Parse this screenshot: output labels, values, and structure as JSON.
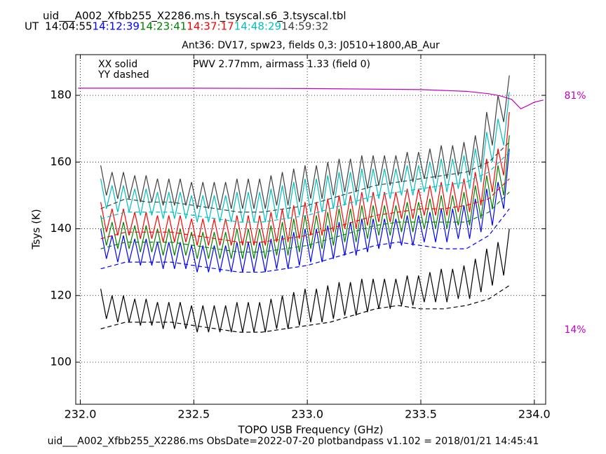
{
  "chart_data": {
    "type": "line",
    "filename": "uid___A002_Xfbb255_X2286.ms.h_tsyscal.s6_3.tsyscal.tbl",
    "ut_label": "UT",
    "title": "Ant36: DV17,  spw23,  fields 0,3: J0510+1800,AB_Aur",
    "legend_lines": [
      "XX solid",
      "YY dashed"
    ],
    "annotation": "PWV 2.77mm, airmass 1.33 (field 0)",
    "xlabel": "TOPO USB Frequency (GHz)",
    "ylabel": "Tsys (K)",
    "footer": "uid___A002_Xfbb255_X2286.ms  ObsDate=2022-07-20   plotbandpass v1.102 = 2018/01/21 14:45:41",
    "xlim": [
      231.98,
      234.05
    ],
    "ylim": [
      87.4,
      192.2
    ],
    "y2lim": [
      -7.3,
      92.8
    ],
    "xticks": [
      {
        "value": 232.0,
        "label": "232.0"
      },
      {
        "value": 232.5,
        "label": "232.5"
      },
      {
        "value": 233.0,
        "label": "233.0"
      },
      {
        "value": 233.5,
        "label": "233.5"
      },
      {
        "value": 234.0,
        "label": "234.0"
      }
    ],
    "yticks": [
      100,
      120,
      140,
      160,
      180
    ],
    "y2ticks": [
      {
        "value": 14,
        "label": "14%"
      },
      {
        "value": 81,
        "label": "81%"
      }
    ],
    "grid": true,
    "x": [
      232.09,
      232.115,
      232.14,
      232.165,
      232.19,
      232.215,
      232.24,
      232.265,
      232.29,
      232.315,
      232.34,
      232.365,
      232.39,
      232.415,
      232.44,
      232.465,
      232.49,
      232.515,
      232.54,
      232.565,
      232.59,
      232.615,
      232.64,
      232.665,
      232.69,
      232.715,
      232.74,
      232.765,
      232.79,
      232.815,
      232.84,
      232.865,
      232.89,
      232.915,
      232.94,
      232.965,
      232.99,
      233.015,
      233.04,
      233.065,
      233.09,
      233.115,
      233.14,
      233.165,
      233.19,
      233.215,
      233.24,
      233.265,
      233.29,
      233.315,
      233.34,
      233.365,
      233.39,
      233.415,
      233.44,
      233.465,
      233.49,
      233.515,
      233.54,
      233.565,
      233.59,
      233.615,
      233.64,
      233.665,
      233.69,
      233.715,
      233.74,
      233.765,
      233.79,
      233.815,
      233.84,
      233.865,
      233.89
    ],
    "yy_x": [
      232.09,
      232.2,
      232.3,
      232.4,
      232.5,
      232.6,
      232.7,
      232.8,
      232.9,
      233.0,
      233.1,
      233.2,
      233.3,
      233.4,
      233.5,
      233.6,
      233.7,
      233.8,
      233.89
    ],
    "series": [
      {
        "name": "14:04:55",
        "color": "#000000",
        "values": [
          122,
          113,
          120,
          112,
          120,
          112,
          119,
          111,
          119,
          111,
          118,
          110,
          118,
          110,
          118,
          110,
          117,
          109,
          117,
          109,
          117,
          109,
          117,
          109,
          118,
          109,
          118,
          109,
          118,
          109,
          119,
          110,
          120,
          110,
          121,
          111,
          122,
          112,
          122,
          112,
          123,
          113,
          124,
          114,
          124,
          114,
          125,
          115,
          125,
          116,
          125,
          116,
          125,
          117,
          126,
          117,
          126,
          118,
          127,
          118,
          128,
          118,
          128,
          119,
          129,
          119,
          131,
          121,
          134,
          123,
          136,
          126,
          140
        ],
        "yy": [
          110,
          112,
          112,
          112,
          111,
          110,
          109,
          109,
          110,
          111,
          112,
          114,
          116,
          117,
          116,
          116,
          117,
          119,
          123
        ]
      },
      {
        "name": "14:12:39",
        "color": "#0000ff",
        "values": [
          140,
          131,
          138,
          130,
          138,
          130,
          137,
          129,
          137,
          129,
          136,
          128,
          136,
          128,
          136,
          128,
          135,
          127,
          135,
          127,
          135,
          127,
          135,
          127,
          136,
          127,
          136,
          127,
          136,
          127,
          137,
          128,
          138,
          128,
          139,
          129,
          140,
          130,
          140,
          130,
          141,
          131,
          142,
          132,
          142,
          132,
          143,
          133,
          143,
          134,
          143,
          134,
          143,
          135,
          144,
          135,
          144,
          136,
          145,
          136,
          146,
          136,
          146,
          137,
          147,
          137,
          149,
          139,
          152,
          141,
          154,
          146,
          164
        ],
        "yy": [
          128,
          130,
          130,
          130,
          129,
          128,
          127,
          127,
          128,
          129,
          131,
          133,
          135,
          136,
          135,
          134,
          134,
          138,
          146
        ]
      },
      {
        "name": "14:23:41",
        "color": "#008000",
        "values": [
          144,
          135,
          142,
          134,
          142,
          134,
          141,
          133,
          141,
          133,
          140,
          132,
          140,
          132,
          140,
          132,
          139,
          131,
          139,
          131,
          139,
          131,
          139,
          131,
          140,
          131,
          140,
          131,
          140,
          131,
          141,
          132,
          142,
          132,
          143,
          133,
          144,
          134,
          144,
          134,
          145,
          135,
          146,
          136,
          146,
          136,
          147,
          137,
          147,
          138,
          147,
          138,
          147,
          139,
          148,
          139,
          148,
          140,
          149,
          140,
          150,
          140,
          150,
          141,
          151,
          141,
          153,
          143,
          156,
          146,
          159,
          150,
          168
        ],
        "yy": [
          134,
          136,
          136,
          136,
          135,
          134,
          133,
          133,
          134,
          135,
          137,
          139,
          141,
          142,
          142,
          142,
          142,
          145,
          151
        ]
      },
      {
        "name": "14:37:17",
        "color": "#ff0000",
        "values": [
          148,
          139,
          146,
          138,
          146,
          138,
          145,
          137,
          145,
          137,
          144,
          136,
          144,
          136,
          144,
          136,
          143,
          135,
          143,
          135,
          143,
          135,
          143,
          135,
          144,
          135,
          144,
          135,
          144,
          135,
          145,
          136,
          146,
          136,
          147,
          137,
          148,
          138,
          148,
          138,
          149,
          139,
          150,
          140,
          150,
          140,
          151,
          141,
          151,
          142,
          151,
          142,
          151,
          143,
          152,
          143,
          152,
          144,
          153,
          144,
          154,
          144,
          154,
          145,
          155,
          145,
          157,
          147,
          161,
          151,
          164,
          156,
          175
        ],
        "yy": [
          137,
          139,
          139,
          139,
          138,
          137,
          136,
          136,
          137,
          138,
          140,
          142,
          144,
          145,
          146,
          146,
          147,
          149,
          155
        ]
      },
      {
        "name": "14:48:29",
        "color": "#00bfbf",
        "values": [
          155,
          146,
          153,
          145,
          153,
          145,
          152,
          144,
          152,
          144,
          151,
          143,
          151,
          143,
          151,
          143,
          150,
          142,
          150,
          142,
          150,
          142,
          150,
          142,
          151,
          142,
          151,
          142,
          151,
          142,
          152,
          143,
          153,
          143,
          154,
          144,
          155,
          145,
          155,
          145,
          156,
          146,
          157,
          147,
          157,
          147,
          158,
          148,
          158,
          149,
          158,
          149,
          158,
          150,
          159,
          150,
          159,
          151,
          160,
          151,
          161,
          151,
          161,
          152,
          162,
          152,
          164,
          154,
          169,
          160,
          173,
          165,
          181
        ],
        "yy": [
          143,
          145,
          145,
          145,
          144,
          143,
          142,
          142,
          143,
          144,
          146,
          148,
          150,
          151,
          152,
          153,
          154,
          157,
          163
        ]
      },
      {
        "name": "14:59:32",
        "color": "#404040",
        "values": [
          159,
          150,
          157,
          149,
          157,
          149,
          156,
          148,
          156,
          148,
          155,
          147,
          155,
          147,
          155,
          147,
          154,
          146,
          154,
          146,
          154,
          146,
          154,
          146,
          155,
          146,
          155,
          146,
          155,
          146,
          156,
          147,
          157,
          147,
          158,
          148,
          159,
          149,
          159,
          149,
          160,
          150,
          161,
          151,
          161,
          151,
          162,
          152,
          162,
          153,
          162,
          153,
          162,
          154,
          163,
          154,
          163,
          155,
          164,
          155,
          165,
          155,
          165,
          156,
          166,
          156,
          168,
          158,
          175,
          165,
          180,
          172,
          186
        ],
        "yy": [
          146,
          149,
          148,
          148,
          147,
          146,
          145,
          145,
          146,
          147,
          149,
          151,
          153,
          154,
          155,
          156,
          157,
          160,
          166
        ]
      }
    ],
    "pwv": {
      "color": "#c000c0",
      "axis": "y2",
      "x": [
        231.99,
        232.5,
        233.0,
        233.5,
        233.7,
        233.8,
        233.85,
        233.9,
        233.94,
        233.97,
        234.0,
        234.04
      ],
      "values": [
        83.2,
        83.2,
        83.1,
        82.8,
        82.3,
        81.6,
        81.0,
        80.0,
        77.3,
        78.2,
        79.2,
        79.8
      ]
    }
  }
}
